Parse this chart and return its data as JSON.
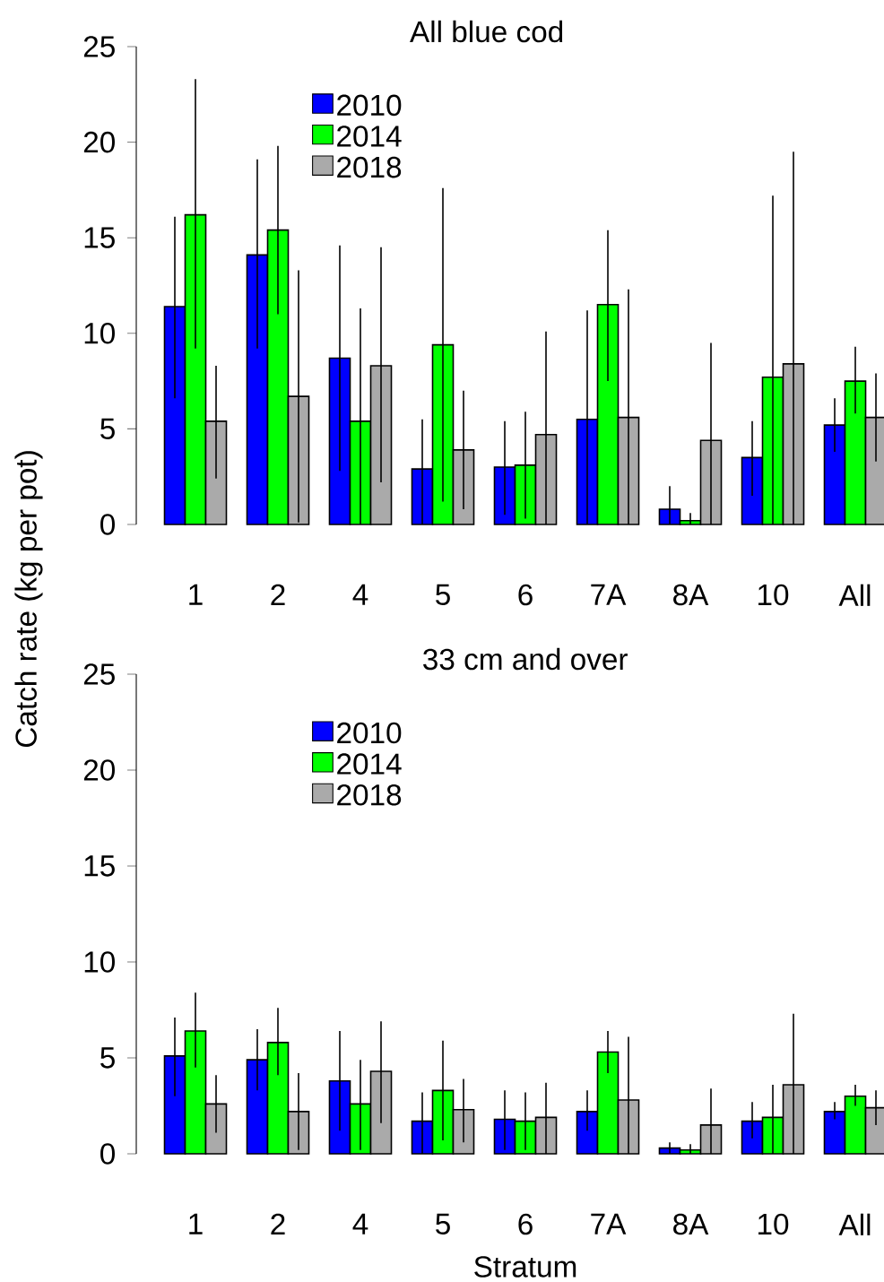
{
  "chart_data": [
    {
      "type": "bar",
      "title": "All blue cod",
      "ylabel": "Catch rate (kg per pot)",
      "categories": [
        "1",
        "2",
        "4",
        "5",
        "6",
        "7A",
        "8A",
        "10",
        "All"
      ],
      "ylim": [
        0,
        25
      ],
      "yticks": [
        0,
        5,
        10,
        15,
        20,
        25
      ],
      "legend": "top left",
      "series": [
        {
          "name": "2010",
          "color": "#0000ff",
          "values": [
            11.4,
            14.1,
            8.7,
            2.9,
            3.0,
            5.5,
            0.8,
            3.5,
            5.2
          ],
          "errors": [
            [
              6.6,
              16.1
            ],
            [
              9.2,
              19.1
            ],
            [
              2.8,
              14.6
            ],
            [
              0,
              5.5
            ],
            [
              0.5,
              5.4
            ],
            [
              0,
              11.2
            ],
            [
              0,
              2.0
            ],
            [
              1.5,
              5.4
            ],
            [
              3.8,
              6.6
            ]
          ]
        },
        {
          "name": "2014",
          "color": "#00ff00",
          "values": [
            16.2,
            15.4,
            5.4,
            9.4,
            3.1,
            11.5,
            0.2,
            7.7,
            7.5
          ],
          "errors": [
            [
              9.2,
              23.3
            ],
            [
              11.0,
              19.8
            ],
            [
              0,
              11.3
            ],
            [
              1.2,
              17.6
            ],
            [
              0.3,
              5.9
            ],
            [
              7.5,
              15.4
            ],
            [
              0,
              0.6
            ],
            [
              0,
              17.2
            ],
            [
              5.8,
              9.3
            ]
          ]
        },
        {
          "name": "2018",
          "color": "#aaaaaa",
          "values": [
            5.4,
            6.7,
            8.3,
            3.9,
            4.7,
            5.6,
            4.4,
            8.4,
            5.6
          ],
          "errors": [
            [
              2.4,
              8.3
            ],
            [
              0.1,
              13.3
            ],
            [
              2.2,
              14.5
            ],
            [
              0.8,
              7.0
            ],
            [
              0,
              10.1
            ],
            [
              0,
              12.3
            ],
            [
              0,
              9.5
            ],
            [
              0,
              19.5
            ],
            [
              3.3,
              7.9
            ]
          ]
        }
      ]
    },
    {
      "type": "bar",
      "title": "33 cm and over",
      "xlabel": "Stratum",
      "categories": [
        "1",
        "2",
        "4",
        "5",
        "6",
        "7A",
        "8A",
        "10",
        "All"
      ],
      "ylim": [
        0,
        25
      ],
      "yticks": [
        0,
        5,
        10,
        15,
        20,
        25
      ],
      "legend": "top left",
      "series": [
        {
          "name": "2010",
          "color": "#0000ff",
          "values": [
            5.1,
            4.9,
            3.8,
            1.7,
            1.8,
            2.2,
            0.3,
            1.7,
            2.2
          ],
          "errors": [
            [
              3.0,
              7.1
            ],
            [
              3.3,
              6.5
            ],
            [
              1.2,
              6.4
            ],
            [
              0,
              3.2
            ],
            [
              0.2,
              3.3
            ],
            [
              1.2,
              3.3
            ],
            [
              0,
              0.6
            ],
            [
              0.8,
              2.7
            ],
            [
              1.8,
              2.7
            ]
          ]
        },
        {
          "name": "2014",
          "color": "#00ff00",
          "values": [
            6.4,
            5.8,
            2.6,
            3.3,
            1.7,
            5.3,
            0.2,
            1.9,
            3.0
          ],
          "errors": [
            [
              4.5,
              8.4
            ],
            [
              4.1,
              7.6
            ],
            [
              0.2,
              4.9
            ],
            [
              0.7,
              5.9
            ],
            [
              0.2,
              3.2
            ],
            [
              4.2,
              6.4
            ],
            [
              0,
              0.5
            ],
            [
              0,
              3.6
            ],
            [
              2.5,
              3.6
            ]
          ]
        },
        {
          "name": "2018",
          "color": "#aaaaaa",
          "values": [
            2.6,
            2.2,
            4.3,
            2.3,
            1.9,
            2.8,
            1.5,
            3.6,
            2.4
          ],
          "errors": [
            [
              1.1,
              4.1
            ],
            [
              0.2,
              4.2
            ],
            [
              1.6,
              6.9
            ],
            [
              0.6,
              3.9
            ],
            [
              0,
              3.7
            ],
            [
              0,
              6.1
            ],
            [
              0,
              3.4
            ],
            [
              0,
              7.3
            ],
            [
              1.5,
              3.3
            ]
          ]
        }
      ]
    }
  ]
}
